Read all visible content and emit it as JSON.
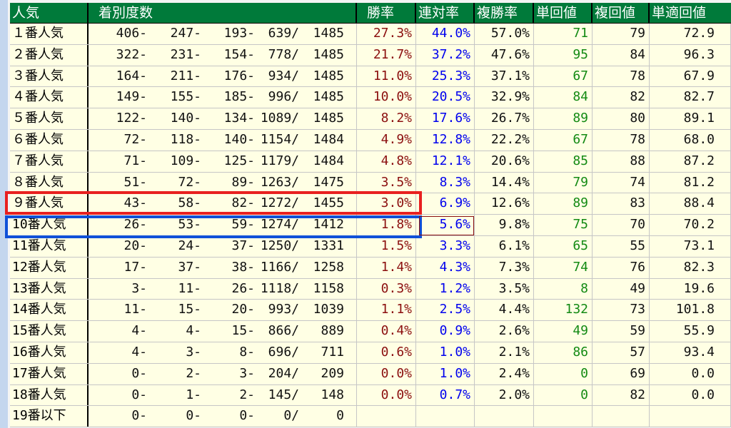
{
  "headers": {
    "popularity": "人気",
    "finish_counts": "着別度数",
    "win_rate": "勝率",
    "quinella_rate": "連対率",
    "show_rate": "複勝率",
    "win_return": "単回値",
    "show_return": "複回値",
    "win_adj_return": "単適回値"
  },
  "colors": {
    "header_bg": "#007a3a",
    "win_rate": "#8b0f0f",
    "quinella_rate": "#0000ee",
    "win_return": "#138a13",
    "highlight_red": "#e82020",
    "highlight_blue": "#1050d8"
  },
  "rows": [
    {
      "label": "１番人気",
      "c": [
        "406-",
        "247-",
        "193-",
        "639/",
        "1485"
      ],
      "win": "27.3%",
      "quin": "44.0%",
      "show": "57.0%",
      "tan": "71",
      "fuku": "79",
      "adj": "72.9"
    },
    {
      "label": "２番人気",
      "c": [
        "322-",
        "231-",
        "154-",
        "778/",
        "1485"
      ],
      "win": "21.7%",
      "quin": "37.2%",
      "show": "47.6%",
      "tan": "95",
      "fuku": "84",
      "adj": "96.3"
    },
    {
      "label": "３番人気",
      "c": [
        "164-",
        "211-",
        "176-",
        "934/",
        "1485"
      ],
      "win": "11.0%",
      "quin": "25.3%",
      "show": "37.1%",
      "tan": "67",
      "fuku": "78",
      "adj": "67.9"
    },
    {
      "label": "４番人気",
      "c": [
        "149-",
        "155-",
        "185-",
        "996/",
        "1485"
      ],
      "win": "10.0%",
      "quin": "20.5%",
      "show": "32.9%",
      "tan": "84",
      "fuku": "82",
      "adj": "82.7"
    },
    {
      "label": "５番人気",
      "c": [
        "122-",
        "140-",
        "134-",
        "1089/",
        "1485"
      ],
      "win": "8.2%",
      "quin": "17.6%",
      "show": "26.7%",
      "tan": "89",
      "fuku": "80",
      "adj": "89.1"
    },
    {
      "label": "６番人気",
      "c": [
        "72-",
        "118-",
        "140-",
        "1154/",
        "1484"
      ],
      "win": "4.9%",
      "quin": "12.8%",
      "show": "22.2%",
      "tan": "67",
      "fuku": "78",
      "adj": "68.0"
    },
    {
      "label": "７番人気",
      "c": [
        "71-",
        "109-",
        "125-",
        "1179/",
        "1484"
      ],
      "win": "4.8%",
      "quin": "12.1%",
      "show": "20.6%",
      "tan": "85",
      "fuku": "88",
      "adj": "87.2"
    },
    {
      "label": "８番人気",
      "c": [
        "51-",
        "72-",
        "89-",
        "1263/",
        "1475"
      ],
      "win": "3.5%",
      "quin": "8.3%",
      "show": "14.4%",
      "tan": "79",
      "fuku": "74",
      "adj": "81.2"
    },
    {
      "label": "９番人気",
      "c": [
        "43-",
        "58-",
        "82-",
        "1272/",
        "1455"
      ],
      "win": "3.0%",
      "quin": "6.9%",
      "show": "12.6%",
      "tan": "89",
      "fuku": "83",
      "adj": "88.4"
    },
    {
      "label": "10番人気",
      "c": [
        "26-",
        "53-",
        "59-",
        "1274/",
        "1412"
      ],
      "win": "1.8%",
      "quin": "5.6%",
      "show": "9.8%",
      "tan": "75",
      "fuku": "70",
      "adj": "70.2"
    },
    {
      "label": "11番人気",
      "c": [
        "20-",
        "24-",
        "37-",
        "1250/",
        "1331"
      ],
      "win": "1.5%",
      "quin": "3.3%",
      "show": "6.1%",
      "tan": "65",
      "fuku": "55",
      "adj": "73.1"
    },
    {
      "label": "12番人気",
      "c": [
        "17-",
        "37-",
        "38-",
        "1166/",
        "1258"
      ],
      "win": "1.4%",
      "quin": "4.3%",
      "show": "7.3%",
      "tan": "74",
      "fuku": "76",
      "adj": "82.3"
    },
    {
      "label": "13番人気",
      "c": [
        "3-",
        "11-",
        "26-",
        "1118/",
        "1158"
      ],
      "win": "0.3%",
      "quin": "1.2%",
      "show": "3.5%",
      "tan": "8",
      "fuku": "49",
      "adj": "19.6"
    },
    {
      "label": "14番人気",
      "c": [
        "11-",
        "15-",
        "20-",
        "993/",
        "1039"
      ],
      "win": "1.1%",
      "quin": "2.5%",
      "show": "4.4%",
      "tan": "132",
      "fuku": "73",
      "adj": "101.8"
    },
    {
      "label": "15番人気",
      "c": [
        "4-",
        "4-",
        "15-",
        "866/",
        "889"
      ],
      "win": "0.4%",
      "quin": "0.9%",
      "show": "2.6%",
      "tan": "49",
      "fuku": "59",
      "adj": "55.9"
    },
    {
      "label": "16番人気",
      "c": [
        "4-",
        "3-",
        "8-",
        "696/",
        "711"
      ],
      "win": "0.6%",
      "quin": "1.0%",
      "show": "2.1%",
      "tan": "86",
      "fuku": "57",
      "adj": "93.4"
    },
    {
      "label": "17番人気",
      "c": [
        "0-",
        "2-",
        "3-",
        "204/",
        "209"
      ],
      "win": "0.0%",
      "quin": "1.0%",
      "show": "2.4%",
      "tan": "0",
      "fuku": "69",
      "adj": "0.0"
    },
    {
      "label": "18番人気",
      "c": [
        "0-",
        "1-",
        "2-",
        "145/",
        "148"
      ],
      "win": "0.0%",
      "quin": "0.7%",
      "show": "2.0%",
      "tan": "0",
      "fuku": "82",
      "adj": "0.0"
    },
    {
      "label": "19番以下",
      "c": [
        "0-",
        "0-",
        "0-",
        "0/",
        "0"
      ],
      "win": "",
      "quin": "",
      "show": "",
      "tan": "",
      "fuku": "",
      "adj": ""
    }
  ]
}
